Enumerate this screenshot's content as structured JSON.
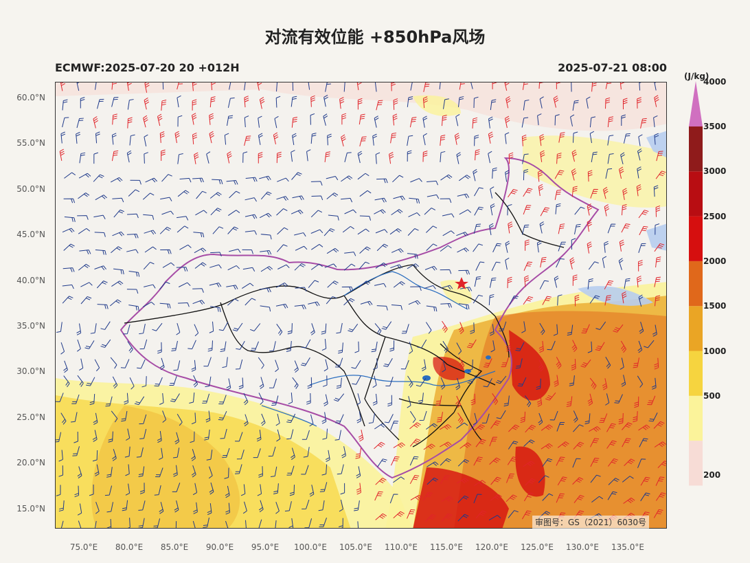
{
  "title": "对流有效位能 +850hPa风场",
  "subtitle_left": "ECMWF:2025-07-20 20 +012H",
  "subtitle_right": "2025-07-21 08:00",
  "stamp": "审图号：GS（2021）6030号",
  "lat_labels": [
    "60.0°N",
    "55.0°N",
    "50.0°N",
    "45.0°N",
    "40.0°N",
    "35.0°N",
    "30.0°N",
    "25.0°N",
    "20.0°N",
    "15.0°N"
  ],
  "lon_labels": [
    "75.0°E",
    "80.0°E",
    "85.0°E",
    "90.0°E",
    "95.0°E",
    "100.0°E",
    "105.0°E",
    "110.0°E",
    "115.0°E",
    "120.0°E",
    "125.0°E",
    "130.0°E",
    "135.0°E"
  ],
  "colorbar": {
    "unit": "(J/kg)",
    "levels": [
      "200",
      "500",
      "1000",
      "1500",
      "2000",
      "2500",
      "3000",
      "3500",
      "4000"
    ],
    "colors": [
      "#f7dcd6",
      "#fbf39a",
      "#f6d43f",
      "#eaa525",
      "#e0681b",
      "#d60f0f",
      "#b80d12",
      "#8f1b1b",
      "#d070c0"
    ]
  },
  "colors": {
    "wind_barb_low": "#1f3a8a",
    "wind_barb_high": "#e0242a",
    "border": "#a64ca6",
    "province": "#111111",
    "river": "#2a6dbf"
  }
}
